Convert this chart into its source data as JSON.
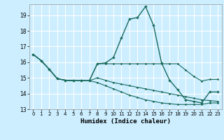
{
  "title": "",
  "xlabel": "Humidex (Indice chaleur)",
  "background_color": "#cceeff",
  "grid_color": "#ffffff",
  "line_color": "#1a6b5e",
  "xlim": [
    -0.5,
    23.5
  ],
  "ylim": [
    13,
    19.7
  ],
  "yticks": [
    13,
    14,
    15,
    16,
    17,
    18,
    19
  ],
  "xticks": [
    0,
    1,
    2,
    3,
    4,
    5,
    6,
    7,
    8,
    9,
    10,
    11,
    12,
    13,
    14,
    15,
    16,
    17,
    18,
    19,
    20,
    21,
    22,
    23
  ],
  "series": [
    [
      16.5,
      16.1,
      15.55,
      14.95,
      14.85,
      14.82,
      14.82,
      14.82,
      15.9,
      15.95,
      16.3,
      17.55,
      18.75,
      18.85,
      19.55,
      18.35,
      15.95,
      14.85,
      14.25,
      13.6,
      13.5,
      13.4,
      14.1,
      14.1
    ],
    [
      16.5,
      16.1,
      15.55,
      14.95,
      14.85,
      14.82,
      14.82,
      14.82,
      15.9,
      15.9,
      15.9,
      15.9,
      15.9,
      15.9,
      15.9,
      15.9,
      15.9,
      15.9,
      15.9,
      15.5,
      15.1,
      14.8,
      14.9,
      14.9
    ],
    [
      16.5,
      16.1,
      15.55,
      14.95,
      14.85,
      14.82,
      14.82,
      14.82,
      15.0,
      14.85,
      14.7,
      14.6,
      14.5,
      14.4,
      14.3,
      14.2,
      14.1,
      14.0,
      13.9,
      13.8,
      13.7,
      13.6,
      13.55,
      13.5
    ],
    [
      16.5,
      16.1,
      15.55,
      14.95,
      14.85,
      14.82,
      14.82,
      14.82,
      14.7,
      14.5,
      14.3,
      14.1,
      13.9,
      13.75,
      13.6,
      13.5,
      13.4,
      13.35,
      13.3,
      13.3,
      13.3,
      13.3,
      13.4,
      13.4
    ]
  ]
}
